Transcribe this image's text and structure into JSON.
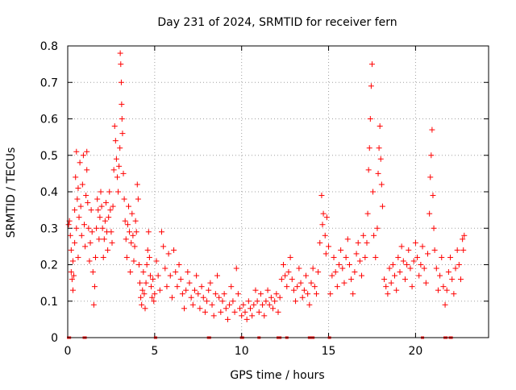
{
  "chart_data": {
    "type": "scatter",
    "title": "Day 231 of 2024, SRMTID for receiver fern",
    "xlabel": "GPS time / hours",
    "ylabel": "SRMTID / TECUs",
    "xlim": [
      0,
      24.2
    ],
    "ylim": [
      0,
      0.8
    ],
    "x_ticks": [
      0,
      5,
      10,
      15,
      20
    ],
    "x_tick_labels": [
      "0",
      "5",
      "10",
      "15",
      "20"
    ],
    "y_ticks": [
      0,
      0.1,
      0.2,
      0.3,
      0.4,
      0.5,
      0.6,
      0.7,
      0.8
    ],
    "y_tick_labels": [
      "0",
      "0.1",
      "0.2",
      "0.3",
      "0.4",
      "0.5",
      "0.6",
      "0.7",
      "0.8"
    ],
    "grid": true,
    "marker": "+",
    "color": "#ff0000",
    "series": [
      {
        "name": "SRMTID",
        "points": [
          [
            0.05,
            0.31
          ],
          [
            0.1,
            0.32
          ],
          [
            0.15,
            0.28
          ],
          [
            0.2,
            0.24
          ],
          [
            0.2,
            0.18
          ],
          [
            0.25,
            0.16
          ],
          [
            0.3,
            0.13
          ],
          [
            0.3,
            0.21
          ],
          [
            0.35,
            0.17
          ],
          [
            0.4,
            0.26
          ],
          [
            0.4,
            0.35
          ],
          [
            0.45,
            0.44
          ],
          [
            0.5,
            0.51
          ],
          [
            0.5,
            0.3
          ],
          [
            0.55,
            0.38
          ],
          [
            0.6,
            0.41
          ],
          [
            0.6,
            0.22
          ],
          [
            0.65,
            0.33
          ],
          [
            0.7,
            0.48
          ],
          [
            0.75,
            0.36
          ],
          [
            0.8,
            0.28
          ],
          [
            0.85,
            0.42
          ],
          [
            0.9,
            0.5
          ],
          [
            0.95,
            0.31
          ],
          [
            1.0,
            0.25
          ],
          [
            1.05,
            0.39
          ],
          [
            1.1,
            0.46
          ],
          [
            1.1,
            0.51
          ],
          [
            1.15,
            0.37
          ],
          [
            1.2,
            0.3
          ],
          [
            1.25,
            0.21
          ],
          [
            1.3,
            0.26
          ],
          [
            1.35,
            0.35
          ],
          [
            1.4,
            0.29
          ],
          [
            1.45,
            0.18
          ],
          [
            1.5,
            0.09
          ],
          [
            1.55,
            0.14
          ],
          [
            1.6,
            0.22
          ],
          [
            1.65,
            0.3
          ],
          [
            1.7,
            0.38
          ],
          [
            1.75,
            0.35
          ],
          [
            1.8,
            0.27
          ],
          [
            1.85,
            0.33
          ],
          [
            1.9,
            0.4
          ],
          [
            1.95,
            0.36
          ],
          [
            2.0,
            0.3
          ],
          [
            2.05,
            0.22
          ],
          [
            2.1,
            0.27
          ],
          [
            2.15,
            0.32
          ],
          [
            2.2,
            0.37
          ],
          [
            2.25,
            0.29
          ],
          [
            2.3,
            0.24
          ],
          [
            2.35,
            0.33
          ],
          [
            2.4,
            0.4
          ],
          [
            2.45,
            0.35
          ],
          [
            2.5,
            0.29
          ],
          [
            2.55,
            0.26
          ],
          [
            2.6,
            0.36
          ],
          [
            2.65,
            0.46
          ],
          [
            2.7,
            0.58
          ],
          [
            2.75,
            0.54
          ],
          [
            2.8,
            0.49
          ],
          [
            2.85,
            0.44
          ],
          [
            2.9,
            0.4
          ],
          [
            2.95,
            0.47
          ],
          [
            3.0,
            0.52
          ],
          [
            3.02,
            0.78
          ],
          [
            3.05,
            0.75
          ],
          [
            3.08,
            0.7
          ],
          [
            3.1,
            0.64
          ],
          [
            3.12,
            0.6
          ],
          [
            3.15,
            0.56
          ],
          [
            3.2,
            0.45
          ],
          [
            3.25,
            0.38
          ],
          [
            3.3,
            0.32
          ],
          [
            3.35,
            0.27
          ],
          [
            3.4,
            0.22
          ],
          [
            3.45,
            0.31
          ],
          [
            3.5,
            0.36
          ],
          [
            3.55,
            0.29
          ],
          [
            3.6,
            0.18
          ],
          [
            3.65,
            0.26
          ],
          [
            3.7,
            0.34
          ],
          [
            3.75,
            0.28
          ],
          [
            3.8,
            0.21
          ],
          [
            3.85,
            0.25
          ],
          [
            3.9,
            0.32
          ],
          [
            3.95,
            0.29
          ],
          [
            4.0,
            0.42
          ],
          [
            4.05,
            0.38
          ],
          [
            4.1,
            0.2
          ],
          [
            4.15,
            0.15
          ],
          [
            4.2,
            0.11
          ],
          [
            4.25,
            0.09
          ],
          [
            4.3,
            0.13
          ],
          [
            4.35,
            0.18
          ],
          [
            4.4,
            0.12
          ],
          [
            4.45,
            0.08
          ],
          [
            4.5,
            0.15
          ],
          [
            4.55,
            0.2
          ],
          [
            4.6,
            0.24
          ],
          [
            4.65,
            0.29
          ],
          [
            4.7,
            0.22
          ],
          [
            4.75,
            0.17
          ],
          [
            4.8,
            0.14
          ],
          [
            4.85,
            0.11
          ],
          [
            4.9,
            0.16
          ],
          [
            4.95,
            0.1
          ],
          [
            5.0,
            0.12
          ],
          [
            5.1,
            0.21
          ],
          [
            5.2,
            0.17
          ],
          [
            5.3,
            0.13
          ],
          [
            5.4,
            0.29
          ],
          [
            5.5,
            0.25
          ],
          [
            5.6,
            0.19
          ],
          [
            5.7,
            0.14
          ],
          [
            5.8,
            0.23
          ],
          [
            5.9,
            0.17
          ],
          [
            6.0,
            0.11
          ],
          [
            6.1,
            0.24
          ],
          [
            6.2,
            0.18
          ],
          [
            6.3,
            0.14
          ],
          [
            6.4,
            0.2
          ],
          [
            6.5,
            0.16
          ],
          [
            6.6,
            0.12
          ],
          [
            6.7,
            0.08
          ],
          [
            6.8,
            0.13
          ],
          [
            6.9,
            0.18
          ],
          [
            7.0,
            0.15
          ],
          [
            7.1,
            0.11
          ],
          [
            7.2,
            0.09
          ],
          [
            7.3,
            0.13
          ],
          [
            7.4,
            0.17
          ],
          [
            7.5,
            0.12
          ],
          [
            7.6,
            0.08
          ],
          [
            7.7,
            0.14
          ],
          [
            7.8,
            0.11
          ],
          [
            7.9,
            0.07
          ],
          [
            8.0,
            0.1
          ],
          [
            8.1,
            0.13
          ],
          [
            8.2,
            0.15
          ],
          [
            8.3,
            0.09
          ],
          [
            8.4,
            0.06
          ],
          [
            8.5,
            0.12
          ],
          [
            8.6,
            0.17
          ],
          [
            8.7,
            0.11
          ],
          [
            8.8,
            0.07
          ],
          [
            8.9,
            0.1
          ],
          [
            9.0,
            0.12
          ],
          [
            9.1,
            0.08
          ],
          [
            9.2,
            0.05
          ],
          [
            9.3,
            0.09
          ],
          [
            9.4,
            0.14
          ],
          [
            9.5,
            0.1
          ],
          [
            9.6,
            0.07
          ],
          [
            9.7,
            0.19
          ],
          [
            9.8,
            0.12
          ],
          [
            9.9,
            0.08
          ],
          [
            10.0,
            0.06
          ],
          [
            10.1,
            0.09
          ],
          [
            10.2,
            0.07
          ],
          [
            10.3,
            0.05
          ],
          [
            10.4,
            0.1
          ],
          [
            10.5,
            0.08
          ],
          [
            10.6,
            0.06
          ],
          [
            10.7,
            0.09
          ],
          [
            10.8,
            0.13
          ],
          [
            10.9,
            0.1
          ],
          [
            11.0,
            0.07
          ],
          [
            11.1,
            0.12
          ],
          [
            11.2,
            0.09
          ],
          [
            11.3,
            0.06
          ],
          [
            11.4,
            0.1
          ],
          [
            11.5,
            0.13
          ],
          [
            11.6,
            0.09
          ],
          [
            11.7,
            0.11
          ],
          [
            11.8,
            0.08
          ],
          [
            11.9,
            0.1
          ],
          [
            12.0,
            0.12
          ],
          [
            12.1,
            0.07
          ],
          [
            12.2,
            0.11
          ],
          [
            12.3,
            0.16
          ],
          [
            12.4,
            0.2
          ],
          [
            12.5,
            0.17
          ],
          [
            12.6,
            0.14
          ],
          [
            12.7,
            0.18
          ],
          [
            12.8,
            0.22
          ],
          [
            12.9,
            0.16
          ],
          [
            13.0,
            0.13
          ],
          [
            13.1,
            0.1
          ],
          [
            13.2,
            0.14
          ],
          [
            13.3,
            0.19
          ],
          [
            13.4,
            0.15
          ],
          [
            13.5,
            0.11
          ],
          [
            13.6,
            0.13
          ],
          [
            13.7,
            0.17
          ],
          [
            13.8,
            0.12
          ],
          [
            13.9,
            0.09
          ],
          [
            14.0,
            0.15
          ],
          [
            14.1,
            0.19
          ],
          [
            14.2,
            0.14
          ],
          [
            14.3,
            0.12
          ],
          [
            14.4,
            0.18
          ],
          [
            14.5,
            0.26
          ],
          [
            14.6,
            0.39
          ],
          [
            14.65,
            0.31
          ],
          [
            14.7,
            0.34
          ],
          [
            14.8,
            0.28
          ],
          [
            14.85,
            0.23
          ],
          [
            14.9,
            0.33
          ],
          [
            15.0,
            0.25
          ],
          [
            15.1,
            0.12
          ],
          [
            15.2,
            0.17
          ],
          [
            15.3,
            0.22
          ],
          [
            15.4,
            0.18
          ],
          [
            15.5,
            0.14
          ],
          [
            15.6,
            0.2
          ],
          [
            15.7,
            0.24
          ],
          [
            15.8,
            0.19
          ],
          [
            15.9,
            0.15
          ],
          [
            16.0,
            0.22
          ],
          [
            16.1,
            0.27
          ],
          [
            16.2,
            0.2
          ],
          [
            16.3,
            0.16
          ],
          [
            16.4,
            0.12
          ],
          [
            16.5,
            0.18
          ],
          [
            16.6,
            0.23
          ],
          [
            16.7,
            0.26
          ],
          [
            16.8,
            0.21
          ],
          [
            16.9,
            0.17
          ],
          [
            17.0,
            0.28
          ],
          [
            17.1,
            0.22
          ],
          [
            17.2,
            0.26
          ],
          [
            17.25,
            0.34
          ],
          [
            17.3,
            0.46
          ],
          [
            17.35,
            0.52
          ],
          [
            17.4,
            0.6
          ],
          [
            17.45,
            0.69
          ],
          [
            17.5,
            0.75
          ],
          [
            17.55,
            0.4
          ],
          [
            17.6,
            0.28
          ],
          [
            17.7,
            0.22
          ],
          [
            17.8,
            0.3
          ],
          [
            17.85,
            0.45
          ],
          [
            17.9,
            0.52
          ],
          [
            17.95,
            0.58
          ],
          [
            18.0,
            0.49
          ],
          [
            18.05,
            0.42
          ],
          [
            18.1,
            0.36
          ],
          [
            18.2,
            0.16
          ],
          [
            18.3,
            0.14
          ],
          [
            18.4,
            0.12
          ],
          [
            18.5,
            0.19
          ],
          [
            18.6,
            0.15
          ],
          [
            18.7,
            0.2
          ],
          [
            18.8,
            0.17
          ],
          [
            18.9,
            0.13
          ],
          [
            19.0,
            0.22
          ],
          [
            19.1,
            0.18
          ],
          [
            19.2,
            0.25
          ],
          [
            19.3,
            0.21
          ],
          [
            19.4,
            0.16
          ],
          [
            19.5,
            0.2
          ],
          [
            19.6,
            0.24
          ],
          [
            19.7,
            0.19
          ],
          [
            19.8,
            0.14
          ],
          [
            19.9,
            0.21
          ],
          [
            20.0,
            0.26
          ],
          [
            20.1,
            0.22
          ],
          [
            20.2,
            0.17
          ],
          [
            20.3,
            0.2
          ],
          [
            20.4,
            0.25
          ],
          [
            20.5,
            0.19
          ],
          [
            20.6,
            0.15
          ],
          [
            20.7,
            0.23
          ],
          [
            20.8,
            0.34
          ],
          [
            20.85,
            0.44
          ],
          [
            20.9,
            0.5
          ],
          [
            20.95,
            0.57
          ],
          [
            21.0,
            0.39
          ],
          [
            21.05,
            0.3
          ],
          [
            21.1,
            0.24
          ],
          [
            21.2,
            0.19
          ],
          [
            21.3,
            0.13
          ],
          [
            21.4,
            0.17
          ],
          [
            21.5,
            0.22
          ],
          [
            21.6,
            0.14
          ],
          [
            21.7,
            0.09
          ],
          [
            21.8,
            0.13
          ],
          [
            21.9,
            0.18
          ],
          [
            22.0,
            0.22
          ],
          [
            22.1,
            0.16
          ],
          [
            22.2,
            0.12
          ],
          [
            22.3,
            0.19
          ],
          [
            22.4,
            0.24
          ],
          [
            22.5,
            0.2
          ],
          [
            22.6,
            0.16
          ],
          [
            22.7,
            0.27
          ],
          [
            22.75,
            0.24
          ],
          [
            22.8,
            0.28
          ]
        ],
        "zero_markers": [
          0.05,
          0.1,
          0.95,
          1.0,
          5.05,
          8.1,
          8.15,
          10.0,
          10.05,
          11.0,
          12.1,
          12.2,
          12.6,
          13.9,
          14.0,
          14.1,
          15.05,
          20.4,
          21.7,
          21.75,
          22.0,
          22.05
        ]
      }
    ]
  }
}
